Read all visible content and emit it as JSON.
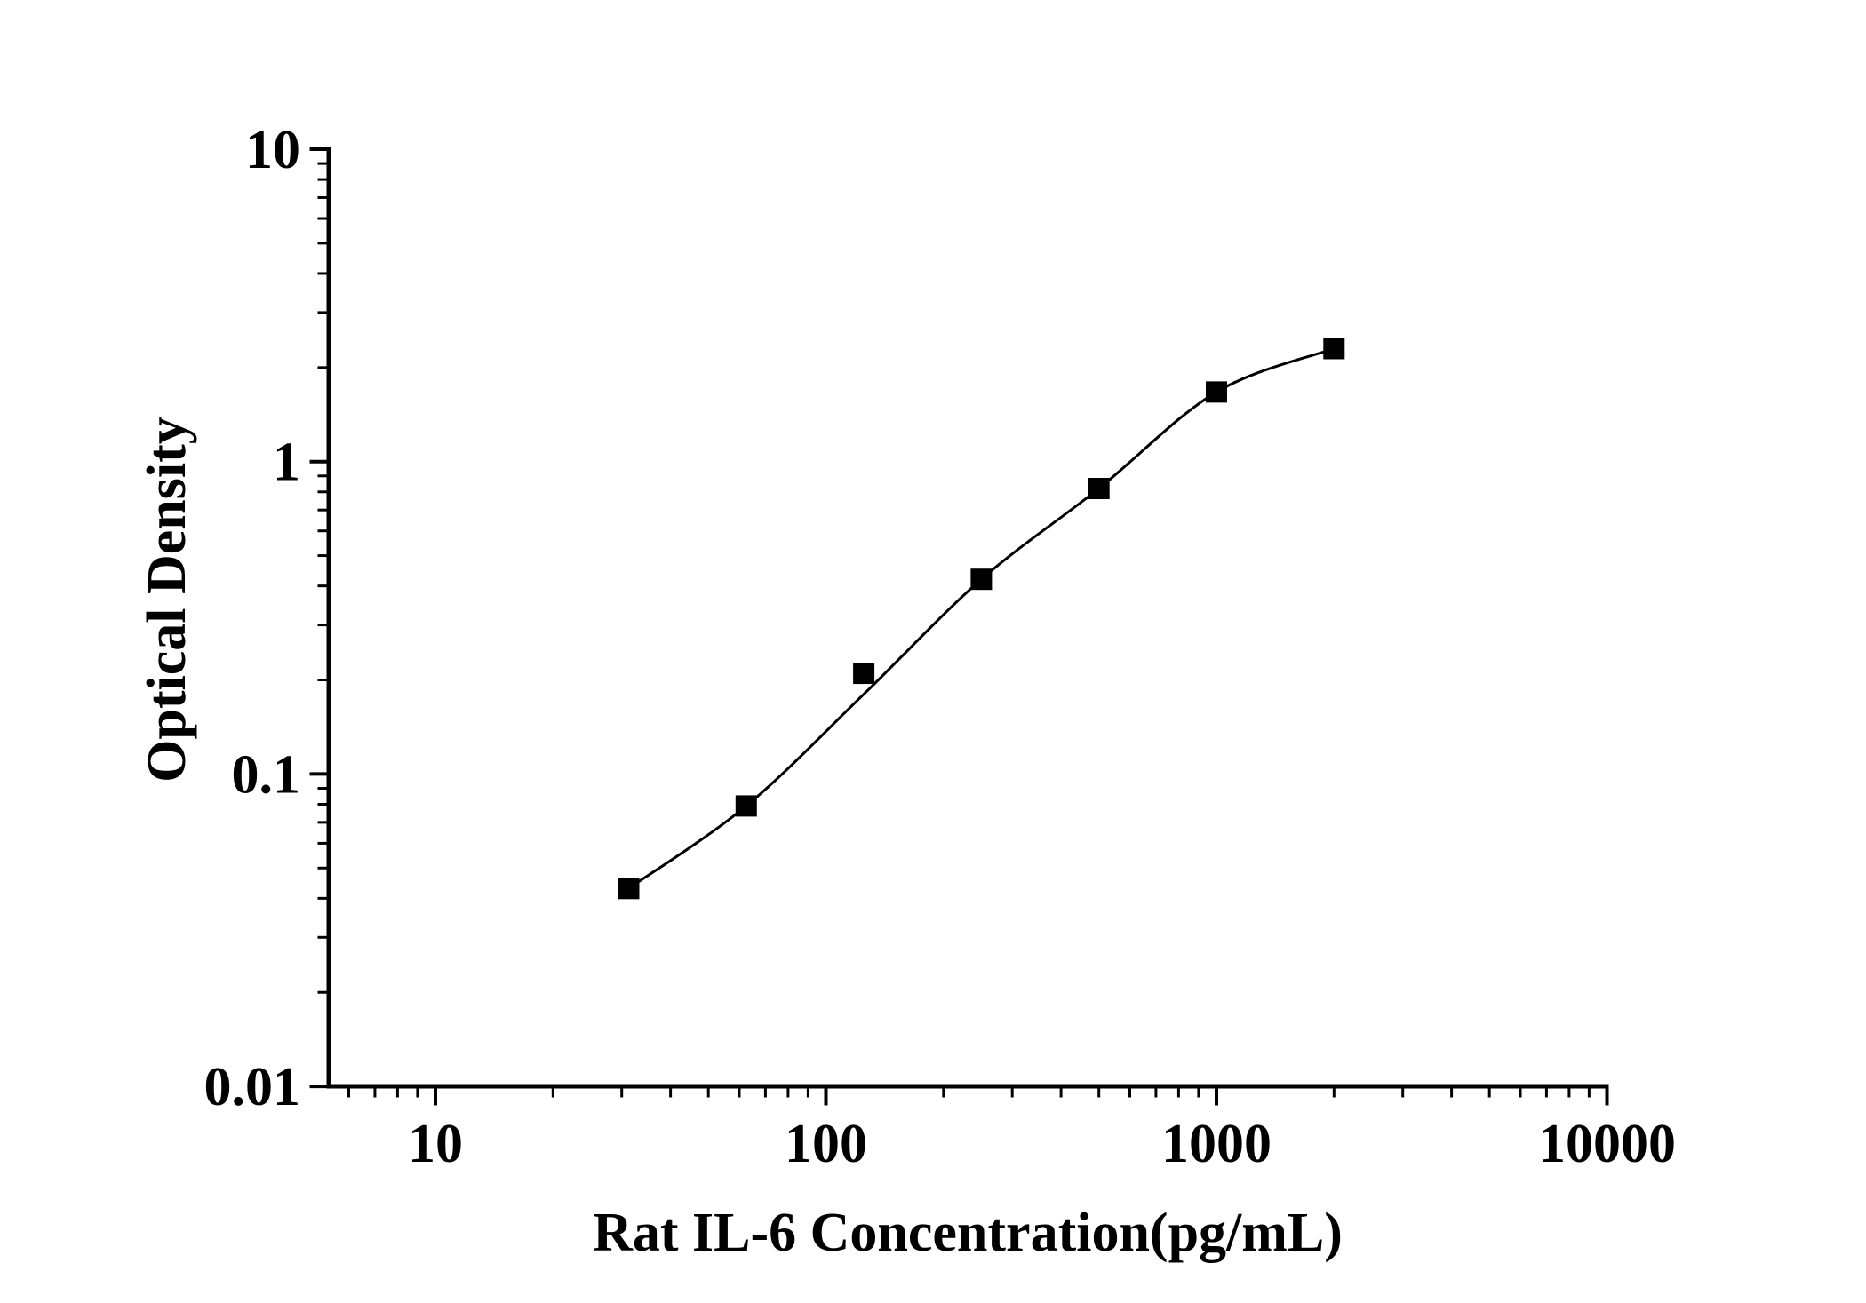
{
  "chart_data": {
    "type": "scatter",
    "title": "",
    "xlabel": "Rat IL-6 Concentration(pg/mL)",
    "ylabel": "Optical Density",
    "x_scale": "log",
    "y_scale": "log",
    "xlim": [
      5.3,
      10000
    ],
    "ylim": [
      0.01,
      10
    ],
    "grid": false,
    "legend": "none",
    "background_color": "#ffffff",
    "axis_color": "#000000",
    "x_major_ticks": [
      10,
      100,
      1000,
      10000
    ],
    "x_tick_labels": [
      "10",
      "100",
      "1000",
      "10000"
    ],
    "y_major_ticks": [
      10,
      1,
      0.1,
      0.01
    ],
    "y_tick_labels": [
      "10",
      "1",
      "0.1",
      "0.01"
    ],
    "series": [
      {
        "name": "rat-il6-standard-curve",
        "marker": "square",
        "marker_color": "#000000",
        "line_color": "#000000",
        "points": [
          {
            "x": 31.25,
            "y": 0.043
          },
          {
            "x": 62.5,
            "y": 0.079
          },
          {
            "x": 125,
            "y": 0.21
          },
          {
            "x": 250,
            "y": 0.42
          },
          {
            "x": 500,
            "y": 0.82
          },
          {
            "x": 1000,
            "y": 1.67
          },
          {
            "x": 2000,
            "y": 2.3
          }
        ],
        "fit_curve_anchors": [
          {
            "x": 31.25,
            "y": 0.043
          },
          {
            "x": 62.5,
            "y": 0.079
          },
          {
            "x": 125,
            "y": 0.18
          },
          {
            "x": 250,
            "y": 0.42
          },
          {
            "x": 500,
            "y": 0.82
          },
          {
            "x": 1000,
            "y": 1.67
          },
          {
            "x": 2000,
            "y": 2.3
          }
        ]
      }
    ]
  }
}
